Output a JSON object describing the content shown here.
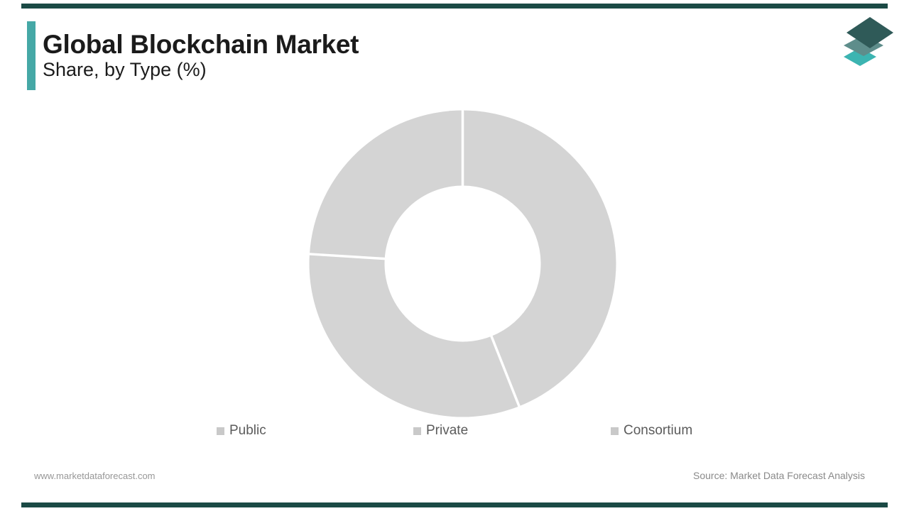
{
  "brand": {
    "top_bar_color": "#1b4a45",
    "accent_bar_color": "#45a8a6",
    "logo": {
      "layer_colors": {
        "top": "#2f5a58",
        "middle": "#5e8d8b",
        "bottom": "#3cb4b1"
      }
    }
  },
  "header": {
    "title": "Global Blockchain Market",
    "subtitle": "Share, by Type (%)"
  },
  "chart_data": {
    "type": "pie",
    "variant": "donut",
    "title": "Global Blockchain Market Share, by Type (%)",
    "categories": [
      "Public",
      "Private",
      "Consortium"
    ],
    "values": [
      44,
      32,
      24
    ],
    "unit": "%",
    "start_angle_deg": 0,
    "direction": "clockwise",
    "slice_color": "#d4d4d4",
    "separator_color": "#ffffff",
    "outer_radius_px": 216,
    "inner_radius_px": 110,
    "center_label": "",
    "data_labels_shown": false,
    "legend_position": "bottom",
    "legend_swatch_color": "#c9c9c9",
    "legend_text_color": "#5b5b5b"
  },
  "footer": {
    "website": "www.marketdataforecast.com",
    "source": "Source: Market Data Forecast Analysis"
  }
}
